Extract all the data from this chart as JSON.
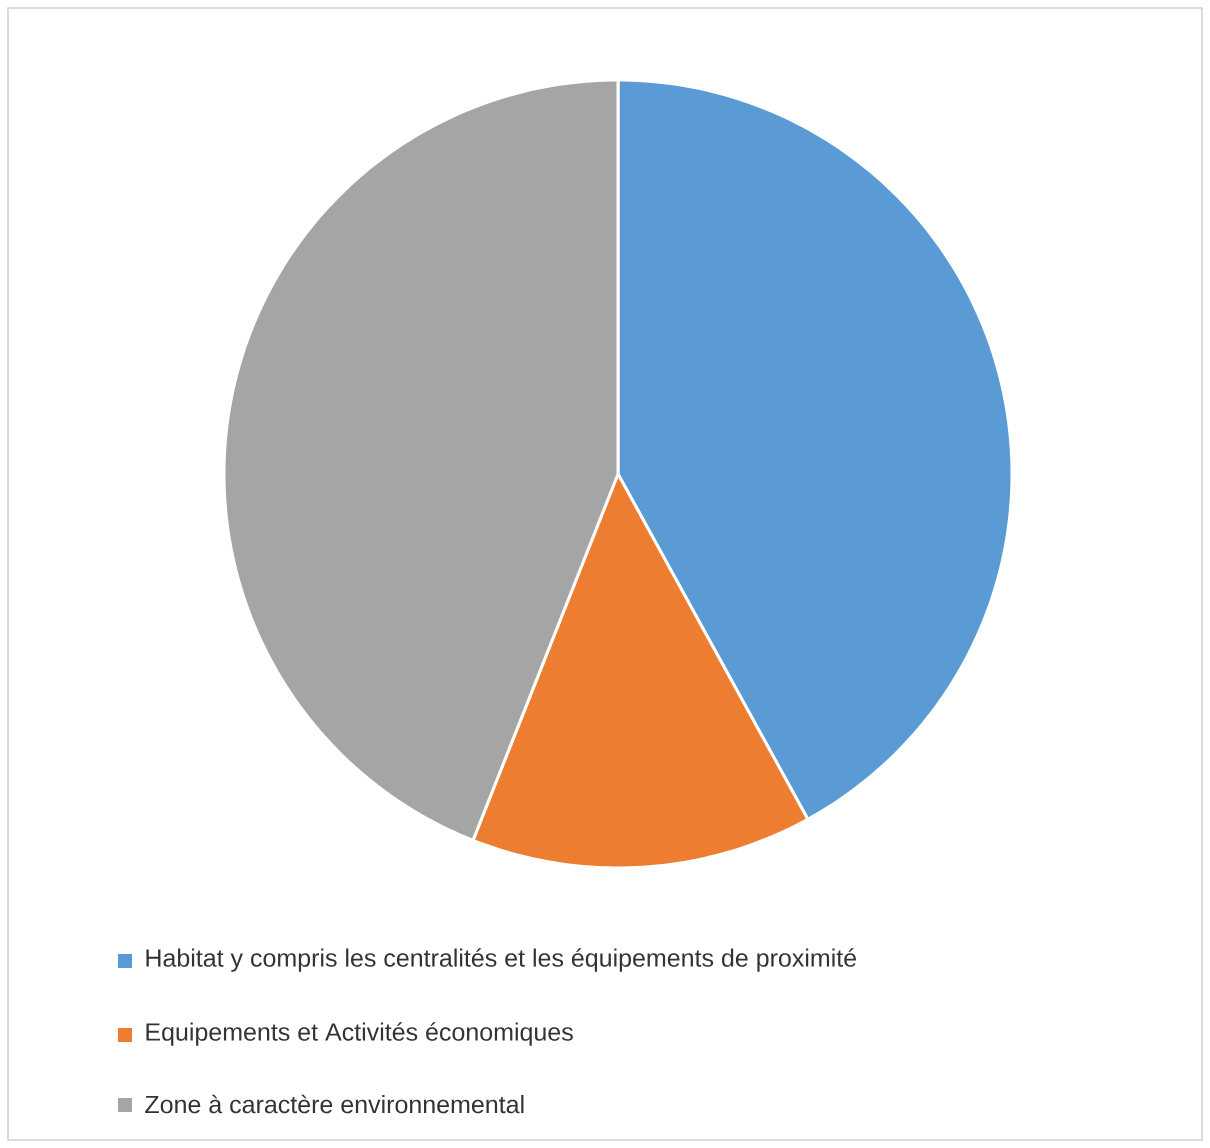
{
  "chart_data": {
    "type": "pie",
    "categories": [
      "Habitat y compris les centralités et les équipements de proximité",
      "Equipements et Activités économiques",
      "Zone à caractère environnemental"
    ],
    "values": [
      42,
      14,
      44
    ],
    "colors": [
      "#5b9bd5",
      "#ed7d31",
      "#a5a5a5"
    ],
    "legend": "bottom"
  }
}
